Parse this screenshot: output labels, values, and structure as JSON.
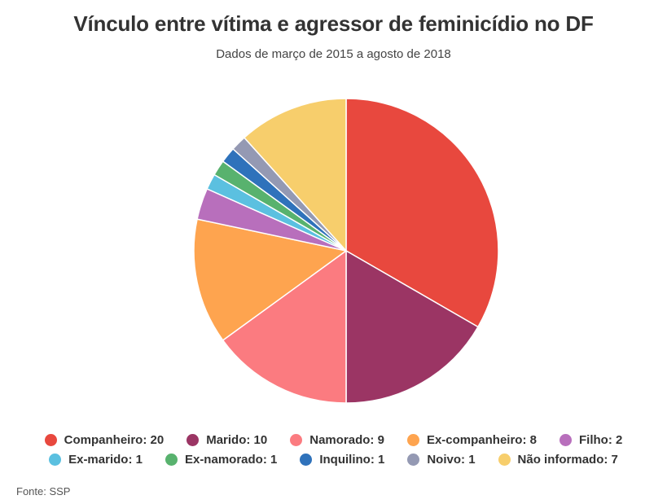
{
  "chart_data": {
    "type": "pie",
    "title": "Vínculo entre vítima e agressor de feminicídio no DF",
    "subtitle": "Dados de março de 2015 a agosto de 2018",
    "legend_position": "bottom",
    "slices": [
      {
        "label": "Companheiro",
        "value": 20,
        "color": "#e8483e"
      },
      {
        "label": "Marido",
        "value": 10,
        "color": "#9b3564"
      },
      {
        "label": "Namorado",
        "value": 9,
        "color": "#fb7b80"
      },
      {
        "label": "Ex-companheiro",
        "value": 8,
        "color": "#fea44f"
      },
      {
        "label": "Filho",
        "value": 2,
        "color": "#b86fbc"
      },
      {
        "label": "Ex-marido",
        "value": 1,
        "color": "#5bc0e0"
      },
      {
        "label": "Ex-namorado",
        "value": 1,
        "color": "#58b26e"
      },
      {
        "label": "Inquilino",
        "value": 1,
        "color": "#2f72bb"
      },
      {
        "label": "Noivo",
        "value": 1,
        "color": "#9499b3"
      },
      {
        "label": "Não informado",
        "value": 7,
        "color": "#f7ce6c"
      }
    ]
  },
  "footer": {
    "source": "Fonte: SSP"
  }
}
